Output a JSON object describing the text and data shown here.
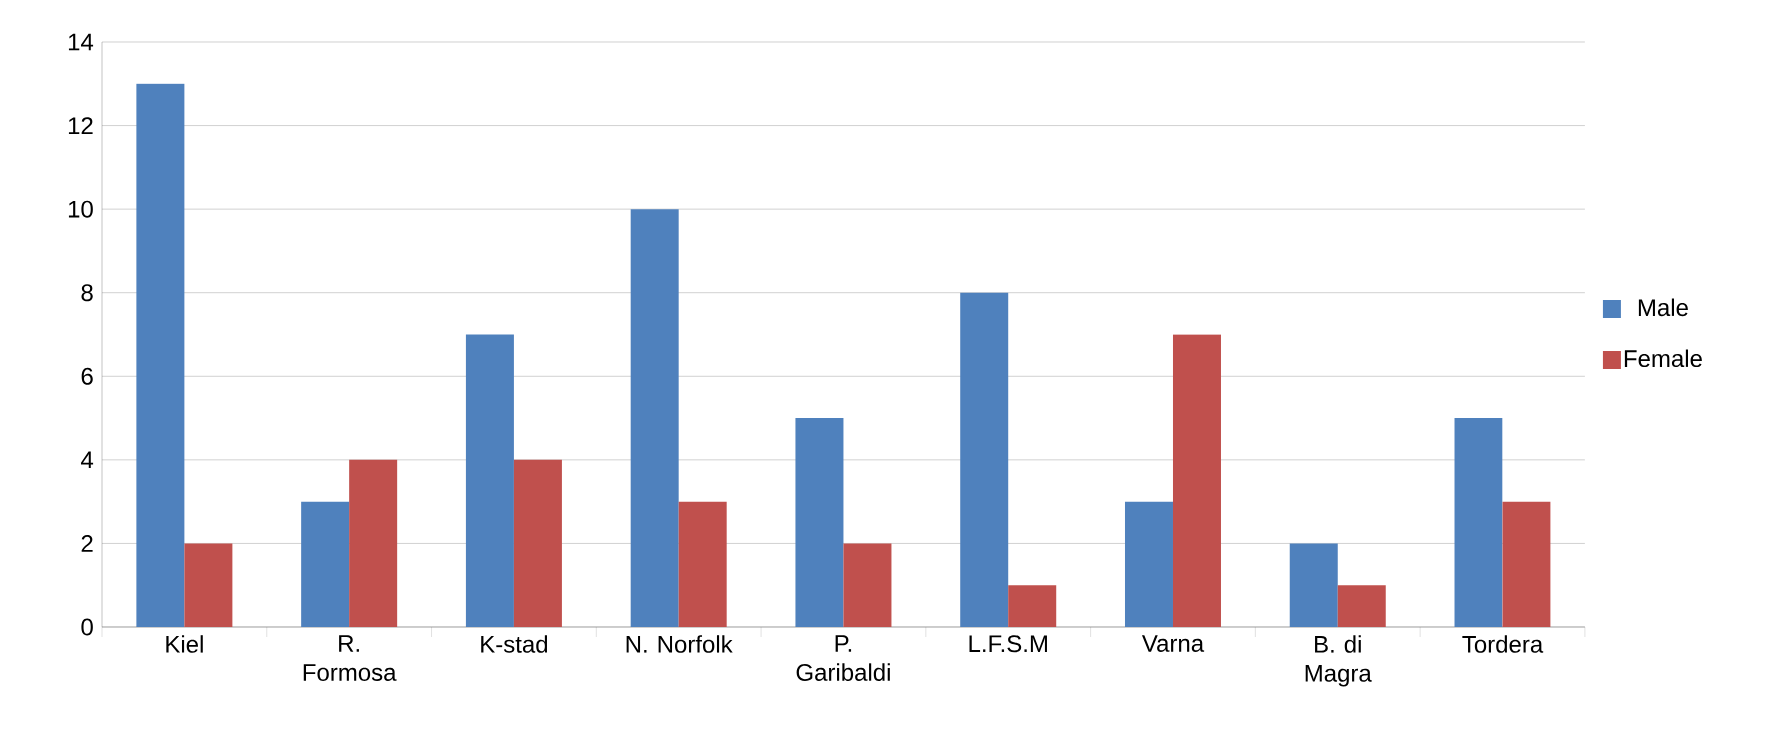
{
  "chart_data": {
    "type": "bar",
    "categories": [
      "Kiel",
      "R. Formosa",
      "K-stad",
      "N. Norfolk",
      "P. Garibaldi",
      "L.F.S.M",
      "Varna",
      "B. di Magra",
      "Tordera"
    ],
    "series": [
      {
        "name": "Male",
        "color": "#4f81bd",
        "values": [
          13,
          3,
          7,
          10,
          5,
          8,
          3,
          2,
          5
        ]
      },
      {
        "name": "Female",
        "color": "#c0504d",
        "values": [
          2,
          4,
          4,
          3,
          2,
          1,
          7,
          1,
          3
        ]
      }
    ],
    "ylim": [
      0,
      14
    ],
    "yticks": [
      0,
      2,
      4,
      6,
      8,
      10,
      12,
      14
    ],
    "grid": "y",
    "legend": "right"
  }
}
